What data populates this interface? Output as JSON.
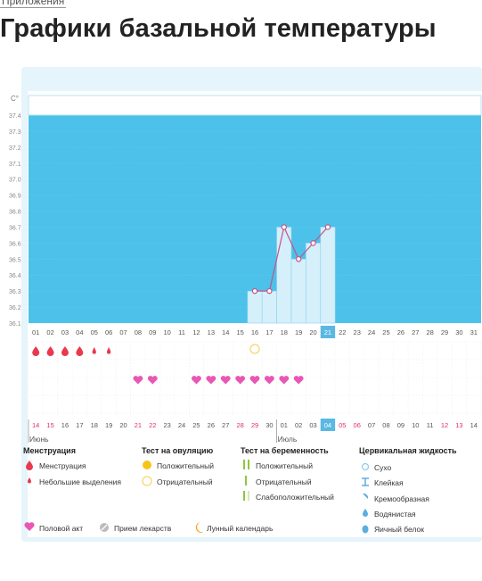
{
  "breadcrumb": "Приложения",
  "title": "Графики базальной температуры",
  "chart_data": {
    "type": "line",
    "ylabel": "C°",
    "ylim": [
      36.1,
      37.4
    ],
    "yticks": [
      "37.4",
      "37.3",
      "37.2",
      "37.1",
      "37.0",
      "36.9",
      "36.8",
      "36.7",
      "36.6",
      "36.5",
      "36.4",
      "36.3",
      "36.2",
      "36.1"
    ],
    "cycle_days": [
      "01",
      "02",
      "03",
      "04",
      "05",
      "06",
      "07",
      "08",
      "09",
      "10",
      "11",
      "12",
      "13",
      "14",
      "15",
      "16",
      "17",
      "18",
      "19",
      "20",
      "21",
      "22",
      "23",
      "24",
      "25",
      "26",
      "27",
      "28",
      "29",
      "30",
      "31"
    ],
    "today_day_index": 20,
    "temperature_points": [
      {
        "day_index": 15,
        "value": 36.3
      },
      {
        "day_index": 16,
        "value": 36.3
      },
      {
        "day_index": 17,
        "value": 36.7
      },
      {
        "day_index": 18,
        "value": 36.5
      },
      {
        "day_index": 19,
        "value": 36.6
      },
      {
        "day_index": 20,
        "value": 36.7
      }
    ],
    "lunar_marker_day_index": 8,
    "menstruation_heavy_days": [
      0,
      1,
      2,
      3
    ],
    "menstruation_light_days": [
      4,
      5
    ],
    "ovulation_test_negative_days": [
      15
    ],
    "intercourse_days": [
      7,
      8,
      11,
      12,
      13,
      14,
      15,
      16,
      17,
      18
    ],
    "calendar_dates": [
      "14",
      "15",
      "16",
      "17",
      "18",
      "19",
      "20",
      "21",
      "22",
      "23",
      "24",
      "25",
      "26",
      "27",
      "28",
      "29",
      "30",
      "01",
      "02",
      "03",
      "04",
      "05",
      "06",
      "07",
      "08",
      "09",
      "10",
      "11",
      "12",
      "13",
      "14"
    ],
    "calendar_red_dates": [
      0,
      1,
      7,
      8,
      14,
      15,
      21,
      22,
      28,
      29
    ],
    "month_labels": [
      {
        "text": "Июнь",
        "day_index": 0
      },
      {
        "text": "Июль",
        "day_index": 17
      }
    ]
  },
  "legend": {
    "menstruation": {
      "heading": "Менструация",
      "items": [
        "Менструация",
        "Небольшие выделения"
      ]
    },
    "ovulation": {
      "heading": "Тест на овуляцию",
      "items": [
        "Положительный",
        "Отрицательный"
      ]
    },
    "pregnancy": {
      "heading": "Тест на беременность",
      "items": [
        "Положительный",
        "Отрицательный",
        "Слабоположительный"
      ]
    },
    "cervical": {
      "heading": "Цервикальная жидкость",
      "items": [
        "Сухо",
        "Клейкая",
        "Кремообразная",
        "Водянистая",
        "Яичный белок"
      ]
    },
    "bottom": [
      "Половой акт",
      "Прием лекарств",
      "Лунный календарь"
    ]
  },
  "colors": {
    "plot_bg": "#4cc1ea",
    "bar": "#d5effb",
    "line": "#c2568a",
    "drop": "#e9394f",
    "heart": "#e957b5",
    "moon": "#f5a623",
    "today_bg": "#5bb8e2",
    "red_text": "#e0306a",
    "panel": "#e6f4fb"
  }
}
